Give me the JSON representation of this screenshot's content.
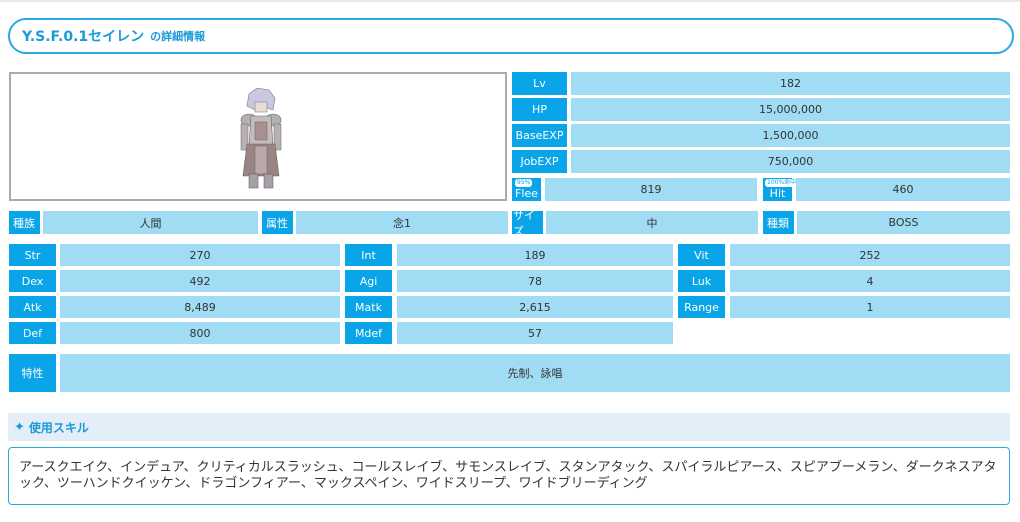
{
  "title": {
    "name": "Y.S.F.0.1セイレン",
    "suffix": "の詳細情報"
  },
  "stats_top": [
    {
      "label": "Lv",
      "value": "182"
    },
    {
      "label": "HP",
      "value": "15,000,000"
    },
    {
      "label": "BaseEXP",
      "value": "1,500,000"
    },
    {
      "label": "JobEXP",
      "value": "750,000"
    }
  ],
  "flee": {
    "label": "Flee",
    "badge": "95%",
    "value": "819"
  },
  "hit": {
    "label": "Hit",
    "badge": "100%命中",
    "value": "460"
  },
  "attributes": [
    {
      "label": "種族",
      "value": "人間"
    },
    {
      "label": "属性",
      "value": "念1"
    },
    {
      "label": "サイズ",
      "value": "中"
    },
    {
      "label": "種類",
      "value": "BOSS"
    }
  ],
  "stats_grid": [
    {
      "label": "Str",
      "value": "270"
    },
    {
      "label": "Int",
      "value": "189"
    },
    {
      "label": "Vit",
      "value": "252"
    },
    {
      "label": "Dex",
      "value": "492"
    },
    {
      "label": "Agi",
      "value": "78"
    },
    {
      "label": "Luk",
      "value": "4"
    },
    {
      "label": "Atk",
      "value": "8,489"
    },
    {
      "label": "Matk",
      "value": "2,615"
    },
    {
      "label": "Range",
      "value": "1"
    },
    {
      "label": "Def",
      "value": "800"
    },
    {
      "label": "Mdef",
      "value": "57"
    }
  ],
  "traits": {
    "label": "特性",
    "value": "先制、詠唱"
  },
  "skills": {
    "heading": "使用スキル",
    "icon": "sparkle-icon",
    "text": "アースクエイク、インデュア、クリティカルスラッシュ、コールスレイブ、サモンスレイブ、スタンアタック、スパイラルピアース、スピアブーメラン、ダークネスアタック、ツーハンドクイッケン、ドラゴンフィアー、マックスペイン、ワイドスリープ、ワイドブリーディング"
  },
  "colors": {
    "label_bg": "#0aa5e8",
    "value_bg": "#a0dcf4",
    "accent": "#29a9e0"
  }
}
